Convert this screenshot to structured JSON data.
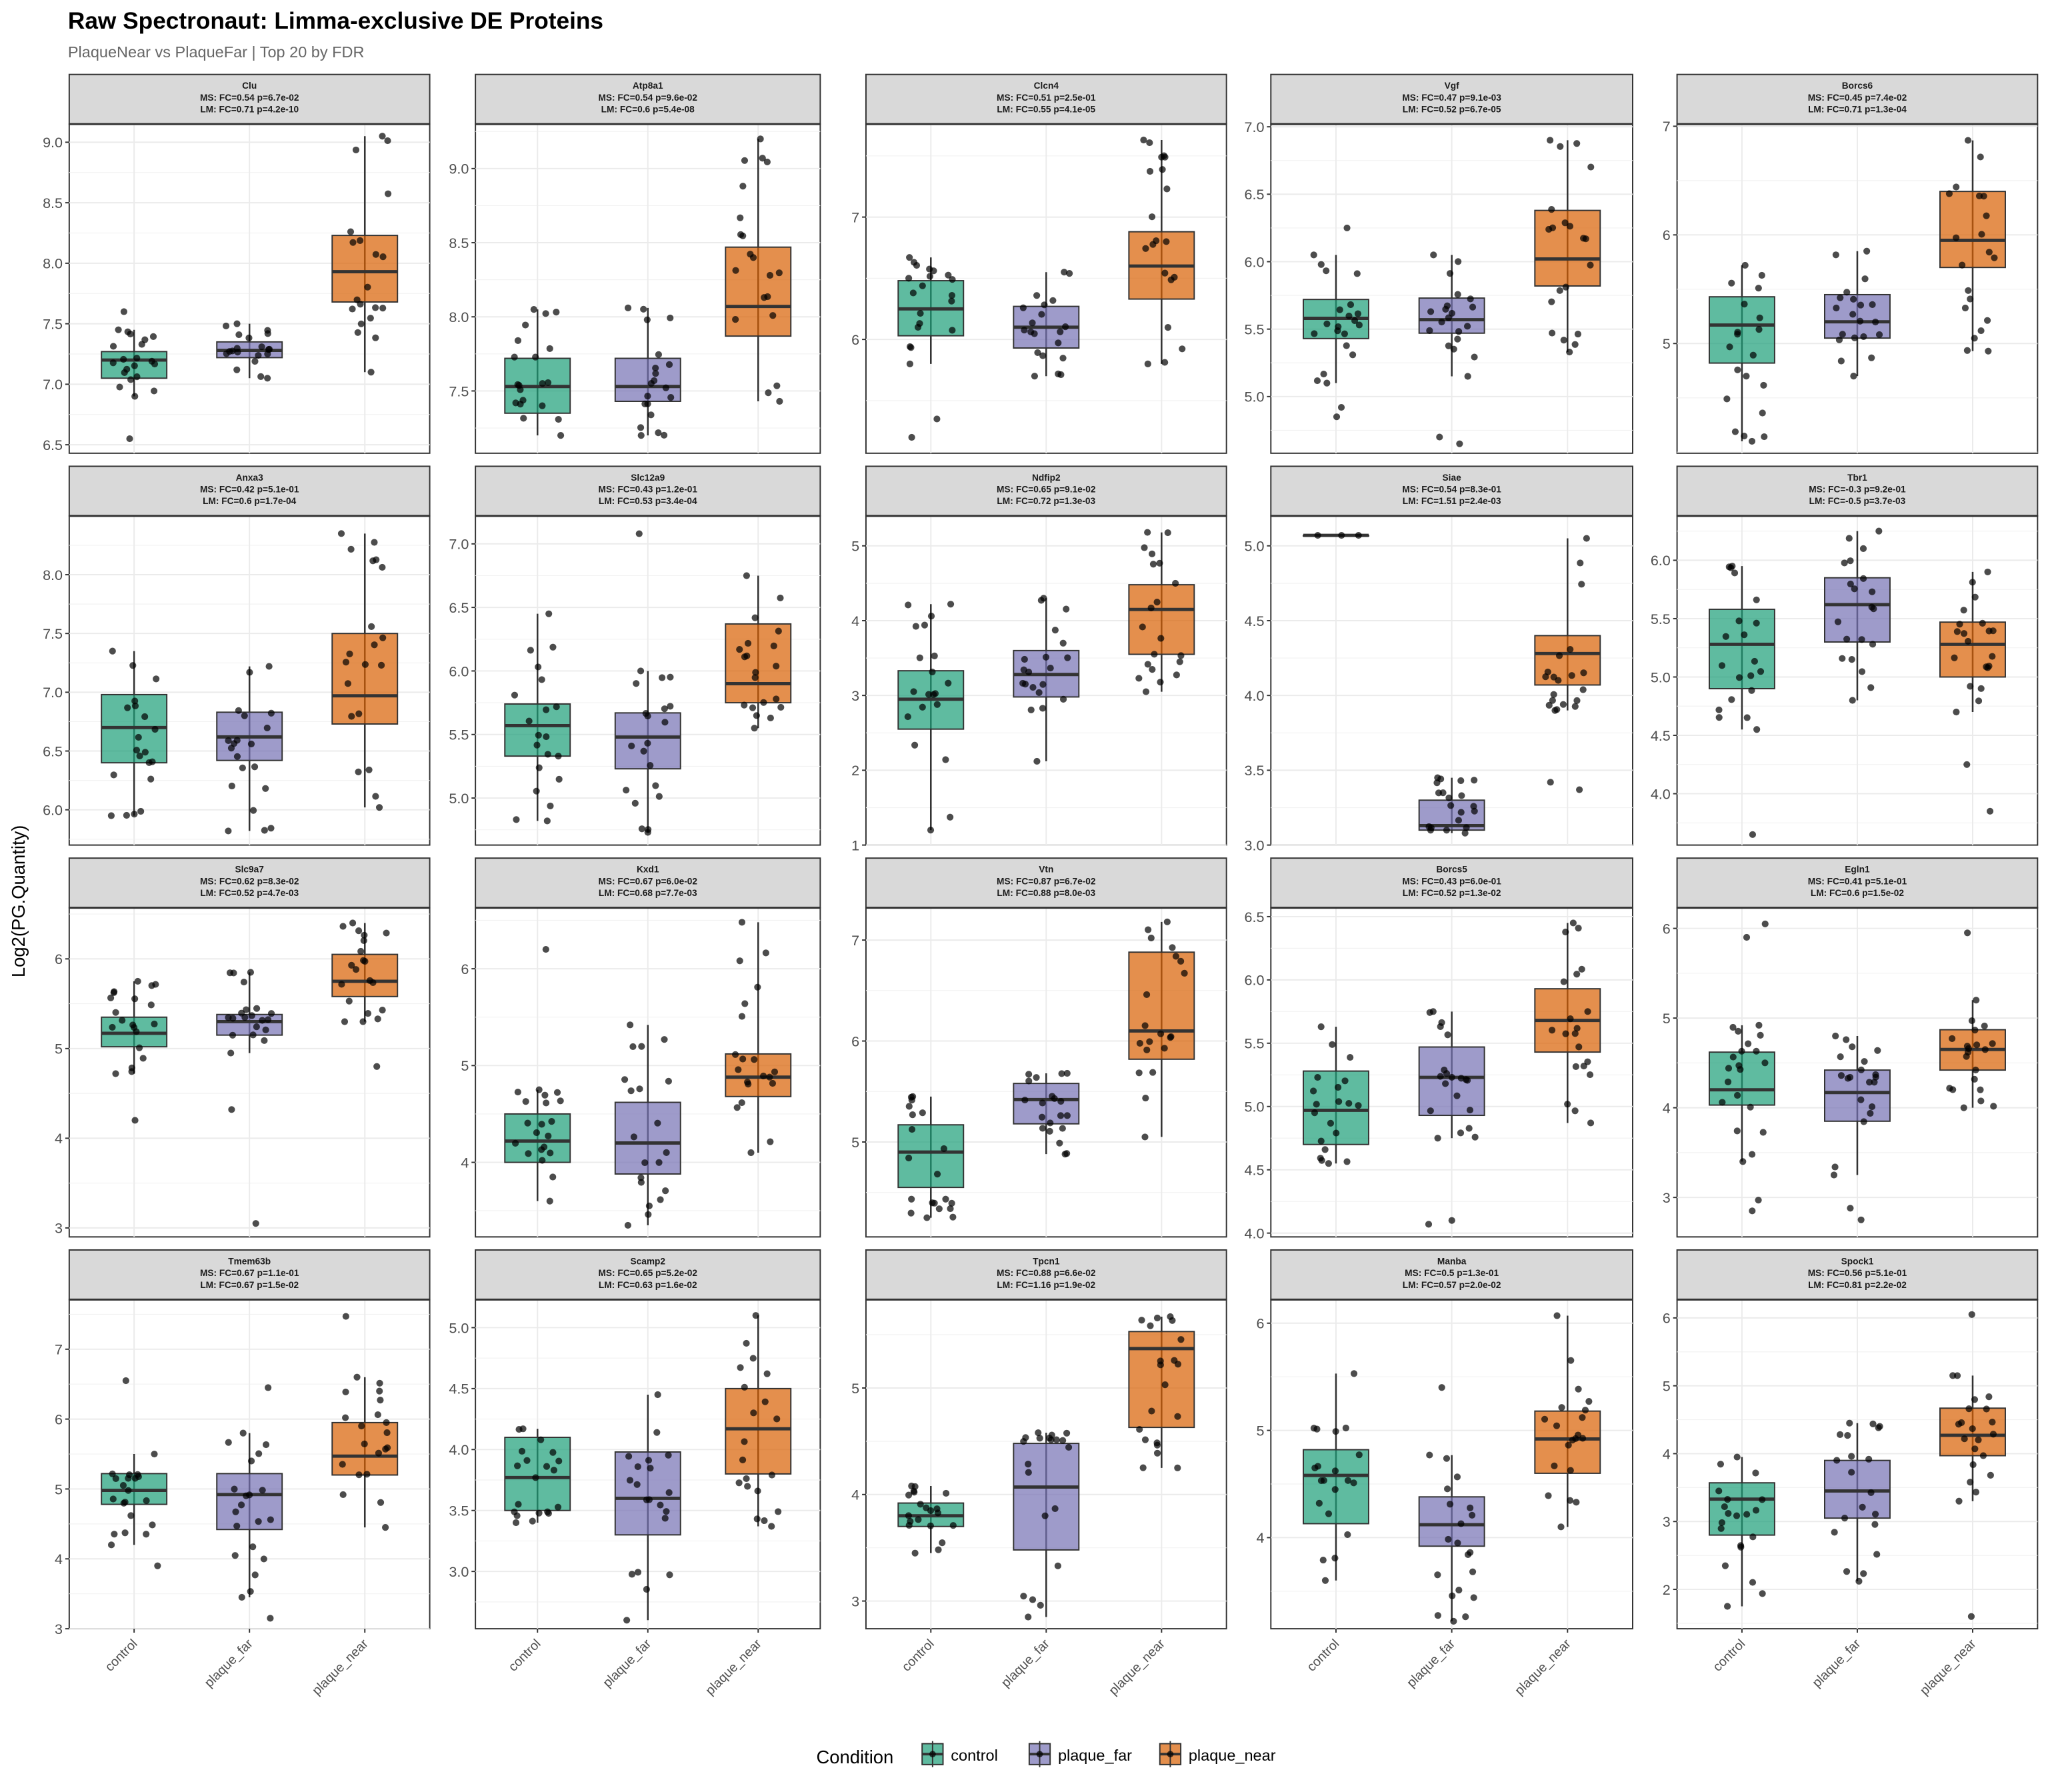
{
  "title": "Raw Spectronaut: Limma-exclusive DE Proteins",
  "subtitle": "PlaqueNear vs PlaqueFar | Top 20 by FDR",
  "legend": {
    "title": "Condition",
    "items": [
      "control",
      "plaque_far",
      "plaque_near"
    ]
  },
  "colors": {
    "control": "#1b9e77",
    "plaque_far": "#7570b3",
    "plaque_near": "#d95f02"
  },
  "chart_data": {
    "type": "boxplot",
    "ylabel": "Log2(PG.Quantity)",
    "categories": [
      "control",
      "plaque_far",
      "plaque_near"
    ],
    "facets": [
      {
        "gene": "Clu",
        "ms": "MS: FC=0.54 p=6.7e-02",
        "lm": "LM: FC=0.71 p=4.2e-10",
        "ylim": [
          6.43,
          9.15
        ],
        "ticks": [
          "6.5",
          "7.0",
          "7.5",
          "8.0",
          "8.5",
          "9.0"
        ],
        "boxes": [
          [
            6.9,
            7.05,
            7.2,
            7.27,
            7.45
          ],
          [
            7.05,
            7.22,
            7.28,
            7.35,
            7.5
          ],
          [
            7.1,
            7.68,
            7.93,
            8.23,
            9.05
          ]
        ],
        "outliers": [
          [
            6.55,
            7.6
          ],
          [],
          []
        ]
      },
      {
        "gene": "Atp8a1",
        "ms": "MS: FC=0.54 p=9.6e-02",
        "lm": "LM: FC=0.6 p=5.4e-08",
        "ylim": [
          7.08,
          9.3
        ],
        "ticks": [
          "7.5",
          "8.0",
          "8.5",
          "9.0"
        ],
        "boxes": [
          [
            7.2,
            7.35,
            7.53,
            7.72,
            8.05
          ],
          [
            7.2,
            7.43,
            7.53,
            7.72,
            8.06
          ],
          [
            7.43,
            7.87,
            8.07,
            8.47,
            9.2
          ]
        ],
        "outliers": [
          [],
          [],
          []
        ]
      },
      {
        "gene": "Clcn4",
        "ms": "MS: FC=0.51 p=2.5e-01",
        "lm": "LM: FC=0.55 p=4.1e-05",
        "ylim": [
          5.07,
          7.76
        ],
        "ticks": [
          "6",
          "7"
        ],
        "boxes": [
          [
            5.8,
            6.03,
            6.25,
            6.48,
            6.67
          ],
          [
            5.7,
            5.93,
            6.1,
            6.27,
            6.55
          ],
          [
            5.8,
            6.33,
            6.6,
            6.88,
            7.63
          ]
        ],
        "outliers": [
          [
            5.2,
            5.35
          ],
          [],
          []
        ]
      },
      {
        "gene": "Vgf",
        "ms": "MS: FC=0.47 p=9.1e-03",
        "lm": "LM: FC=0.52 p=6.7e-05",
        "ylim": [
          4.58,
          7.02
        ],
        "ticks": [
          "5.0",
          "5.5",
          "6.0",
          "6.5",
          "7.0"
        ],
        "boxes": [
          [
            5.1,
            5.43,
            5.58,
            5.72,
            6.05
          ],
          [
            5.15,
            5.47,
            5.57,
            5.73,
            6.05
          ],
          [
            5.33,
            5.82,
            6.02,
            6.38,
            6.9
          ]
        ],
        "outliers": [
          [
            6.25,
            4.85,
            4.92
          ],
          [
            4.7,
            4.65
          ],
          []
        ]
      },
      {
        "gene": "Borcs6",
        "ms": "MS: FC=0.45 p=7.4e-02",
        "lm": "LM: FC=0.71 p=1.3e-04",
        "ylim": [
          3.99,
          7.02
        ],
        "ticks": [
          "5",
          "6",
          "7"
        ],
        "boxes": [
          [
            4.1,
            4.82,
            5.17,
            5.43,
            5.72
          ],
          [
            4.7,
            5.05,
            5.2,
            5.45,
            5.85
          ],
          [
            4.93,
            5.7,
            5.95,
            6.4,
            6.87
          ]
        ],
        "outliers": [
          [],
          [],
          []
        ]
      },
      {
        "gene": "Anxa3",
        "ms": "MS: FC=0.42 p=5.1e-01",
        "lm": "LM: FC=0.6 p=1.7e-04",
        "ylim": [
          5.7,
          8.5
        ],
        "ticks": [
          "6.0",
          "6.5",
          "7.0",
          "7.5",
          "8.0"
        ],
        "boxes": [
          [
            5.95,
            6.4,
            6.7,
            6.98,
            7.35
          ],
          [
            5.82,
            6.42,
            6.62,
            6.83,
            7.22
          ],
          [
            6.02,
            6.73,
            6.97,
            7.5,
            8.35
          ]
        ],
        "outliers": [
          [],
          [],
          []
        ]
      },
      {
        "gene": "Slc12a9",
        "ms": "MS: FC=0.43 p=1.2e-01",
        "lm": "LM: FC=0.53 p=3.4e-04",
        "ylim": [
          4.63,
          7.22
        ],
        "ticks": [
          "5.0",
          "5.5",
          "6.0",
          "6.5",
          "7.0"
        ],
        "boxes": [
          [
            4.82,
            5.33,
            5.57,
            5.74,
            6.45
          ],
          [
            4.73,
            5.23,
            5.48,
            5.67,
            6.0
          ],
          [
            5.55,
            5.75,
            5.9,
            6.37,
            6.75
          ]
        ],
        "outliers": [
          [],
          [
            7.08
          ],
          []
        ]
      },
      {
        "gene": "Ndfip2",
        "ms": "MS: FC=0.65 p=9.1e-02",
        "lm": "LM: FC=0.72 p=1.3e-03",
        "ylim": [
          1.0,
          5.4
        ],
        "ticks": [
          "1",
          "2",
          "3",
          "4",
          "5"
        ],
        "boxes": [
          [
            1.2,
            2.55,
            2.95,
            3.33,
            4.22
          ],
          [
            2.12,
            2.98,
            3.28,
            3.6,
            4.3
          ],
          [
            3.05,
            3.55,
            4.15,
            4.48,
            5.18
          ]
        ],
        "outliers": [
          [],
          [],
          []
        ]
      },
      {
        "gene": "Siae",
        "ms": "MS: FC=0.54 p=8.3e-01",
        "lm": "LM: FC=1.51 p=2.4e-03",
        "ylim": [
          3.0,
          5.2
        ],
        "ticks": [
          "3.0",
          "3.5",
          "4.0",
          "4.5",
          "5.0"
        ],
        "boxes": [
          [
            5.07,
            5.07,
            5.07,
            5.07,
            5.07
          ],
          [
            3.08,
            3.1,
            3.13,
            3.3,
            3.45
          ],
          [
            3.9,
            4.07,
            4.28,
            4.4,
            5.05
          ]
        ],
        "outliers": [
          [],
          [],
          [
            3.37,
            3.42
          ]
        ]
      },
      {
        "gene": "Tbr1",
        "ms": "MS: FC=-0.3 p=9.2e-01",
        "lm": "LM: FC=-0.5 p=3.7e-03",
        "ylim": [
          3.56,
          6.38
        ],
        "ticks": [
          "4.0",
          "4.5",
          "5.0",
          "5.5",
          "6.0"
        ],
        "boxes": [
          [
            4.55,
            4.9,
            5.28,
            5.58,
            5.95
          ],
          [
            4.8,
            5.3,
            5.62,
            5.85,
            6.25
          ],
          [
            4.7,
            5.0,
            5.28,
            5.47,
            5.9
          ]
        ],
        "outliers": [
          [
            3.65
          ],
          [],
          [
            4.25,
            3.85
          ]
        ]
      },
      {
        "gene": "Slc9a7",
        "ms": "MS: FC=0.62 p=8.3e-02",
        "lm": "LM: FC=0.52 p=4.7e-03",
        "ylim": [
          2.9,
          6.57
        ],
        "ticks": [
          "3",
          "4",
          "5",
          "6"
        ],
        "boxes": [
          [
            4.72,
            5.02,
            5.17,
            5.35,
            5.75
          ],
          [
            4.95,
            5.15,
            5.3,
            5.38,
            5.85
          ],
          [
            5.3,
            5.58,
            5.75,
            6.05,
            6.4
          ]
        ],
        "outliers": [
          [
            4.2
          ],
          [
            3.05,
            4.32
          ],
          [
            4.8
          ]
        ]
      },
      {
        "gene": "Kxd1",
        "ms": "MS: FC=0.67 p=6.0e-02",
        "lm": "LM: FC=0.68 p=7.7e-03",
        "ylim": [
          3.23,
          6.63
        ],
        "ticks": [
          "4",
          "5",
          "6"
        ],
        "boxes": [
          [
            3.6,
            4.0,
            4.22,
            4.5,
            4.75
          ],
          [
            3.35,
            3.88,
            4.2,
            4.62,
            5.42
          ],
          [
            4.1,
            4.68,
            4.88,
            5.12,
            6.48
          ]
        ],
        "outliers": [
          [
            6.2
          ],
          [],
          []
        ]
      },
      {
        "gene": "Vtn",
        "ms": "MS: FC=0.87 p=6.7e-02",
        "lm": "LM: FC=0.88 p=8.0e-03",
        "ylim": [
          4.06,
          7.32
        ],
        "ticks": [
          "5",
          "6",
          "7"
        ],
        "boxes": [
          [
            4.25,
            4.55,
            4.9,
            5.17,
            5.45
          ],
          [
            4.88,
            5.18,
            5.42,
            5.58,
            5.68
          ],
          [
            5.05,
            5.82,
            6.1,
            6.88,
            7.18
          ]
        ],
        "outliers": [
          [],
          [],
          []
        ]
      },
      {
        "gene": "Borcs5",
        "ms": "MS: FC=0.43 p=6.0e-01",
        "lm": "LM: FC=0.52 p=1.3e-02",
        "ylim": [
          3.97,
          6.57
        ],
        "ticks": [
          "4.0",
          "4.5",
          "5.0",
          "5.5",
          "6.0",
          "6.5"
        ],
        "boxes": [
          [
            4.55,
            4.7,
            4.97,
            5.28,
            5.63
          ],
          [
            4.75,
            4.93,
            5.23,
            5.47,
            5.75
          ],
          [
            4.87,
            5.43,
            5.68,
            5.93,
            6.45
          ]
        ],
        "outliers": [
          [],
          [
            4.1,
            4.07
          ],
          []
        ]
      },
      {
        "gene": "Egln1",
        "ms": "MS: FC=0.41 p=5.1e-01",
        "lm": "LM: FC=0.6 p=1.5e-02",
        "ylim": [
          2.56,
          6.23
        ],
        "ticks": [
          "3",
          "4",
          "5",
          "6"
        ],
        "boxes": [
          [
            3.4,
            4.03,
            4.2,
            4.62,
            4.92
          ],
          [
            3.25,
            3.85,
            4.17,
            4.42,
            4.8
          ],
          [
            4.0,
            4.42,
            4.65,
            4.87,
            5.2
          ]
        ],
        "outliers": [
          [
            2.85,
            2.97,
            5.9,
            6.05
          ],
          [
            2.75,
            2.88
          ],
          [
            5.95
          ]
        ]
      },
      {
        "gene": "Tmem63b",
        "ms": "MS: FC=0.67 p=1.1e-01",
        "lm": "LM: FC=0.67 p=1.5e-02",
        "ylim": [
          3.0,
          7.71
        ],
        "ticks": [
          "3",
          "4",
          "5",
          "6",
          "7"
        ],
        "boxes": [
          [
            4.2,
            4.78,
            4.98,
            5.22,
            5.5
          ],
          [
            3.45,
            4.42,
            4.92,
            5.22,
            5.8
          ],
          [
            4.45,
            5.2,
            5.47,
            5.95,
            6.6
          ]
        ],
        "outliers": [
          [
            3.9,
            6.55
          ],
          [
            3.15,
            6.45
          ],
          [
            7.47
          ]
        ]
      },
      {
        "gene": "Scamp2",
        "ms": "MS: FC=0.65 p=5.2e-02",
        "lm": "LM: FC=0.63 p=1.6e-02",
        "ylim": [
          2.53,
          5.23
        ],
        "ticks": [
          "3.0",
          "3.5",
          "4.0",
          "4.5",
          "5.0"
        ],
        "boxes": [
          [
            3.4,
            3.5,
            3.77,
            4.1,
            4.17
          ],
          [
            2.6,
            3.3,
            3.6,
            3.98,
            4.45
          ],
          [
            3.37,
            3.8,
            4.17,
            4.5,
            5.1
          ]
        ],
        "outliers": [
          [],
          [],
          []
        ]
      },
      {
        "gene": "Tpcn1",
        "ms": "MS: FC=0.88 p=6.6e-02",
        "lm": "LM: FC=1.16 p=1.9e-02",
        "ylim": [
          2.74,
          5.83
        ],
        "ticks": [
          "3",
          "4",
          "5"
        ],
        "boxes": [
          [
            3.45,
            3.7,
            3.8,
            3.92,
            4.08
          ],
          [
            2.85,
            3.48,
            4.07,
            4.48,
            4.58
          ],
          [
            4.25,
            4.63,
            5.37,
            5.53,
            5.67
          ]
        ],
        "outliers": [
          [],
          [],
          []
        ]
      },
      {
        "gene": "Manba",
        "ms": "MS: FC=0.5 p=1.3e-01",
        "lm": "LM: FC=0.57 p=2.0e-02",
        "ylim": [
          3.15,
          6.22
        ],
        "ticks": [
          "4",
          "5",
          "6"
        ],
        "boxes": [
          [
            3.6,
            4.13,
            4.58,
            4.82,
            5.53
          ],
          [
            3.22,
            3.92,
            4.12,
            4.38,
            4.77
          ],
          [
            4.1,
            4.6,
            4.92,
            5.18,
            6.07
          ]
        ],
        "outliers": [
          [],
          [
            5.4
          ],
          []
        ]
      },
      {
        "gene": "Spock1",
        "ms": "MS: FC=0.56 p=5.1e-01",
        "lm": "LM: FC=0.81 p=2.2e-02",
        "ylim": [
          1.42,
          6.27
        ],
        "ticks": [
          "2",
          "3",
          "4",
          "5",
          "6"
        ],
        "boxes": [
          [
            1.75,
            2.8,
            3.33,
            3.57,
            3.95
          ],
          [
            2.12,
            3.05,
            3.45,
            3.9,
            4.45
          ],
          [
            3.3,
            3.97,
            4.27,
            4.67,
            5.15
          ]
        ],
        "outliers": [
          [],
          [],
          [
            6.05,
            1.6
          ]
        ]
      }
    ]
  }
}
